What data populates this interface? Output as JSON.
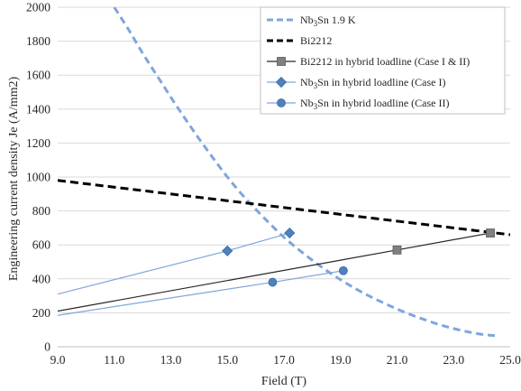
{
  "chart_data": {
    "type": "line",
    "xlabel": "Field (T)",
    "ylabel": "Engineering current density Je (A/mm2)",
    "xlim": [
      9,
      25
    ],
    "ylim": [
      0,
      2000
    ],
    "x_ticks": [
      "9.0",
      "11.0",
      "13.0",
      "15.0",
      "17.0",
      "19.0",
      "21.0",
      "23.0",
      "25.0"
    ],
    "y_ticks": [
      "0",
      "200",
      "400",
      "600",
      "800",
      "1000",
      "1200",
      "1400",
      "1600",
      "1800",
      "2000"
    ],
    "grid": "horizontal",
    "legend_position": "top-right",
    "series": [
      {
        "name": "Nb3Sn 1.9 K",
        "name_base": "Nb",
        "name_sub": "3",
        "name_rest": "Sn 1.9 K",
        "style": "dashed",
        "color": "#7ea6dc",
        "marker": "none",
        "x": [
          11.0,
          11.5,
          12.0,
          12.5,
          13.0,
          13.5,
          14.0,
          14.5,
          15.0,
          15.5,
          16.0,
          16.5,
          17.0,
          17.5,
          18.0,
          18.5,
          19.0,
          19.5,
          20.0,
          20.5,
          21.0,
          21.5,
          22.0,
          22.5,
          23.0,
          23.5,
          24.0,
          24.5
        ],
        "y": [
          2000,
          1870,
          1730,
          1600,
          1470,
          1345,
          1225,
          1110,
          1000,
          900,
          810,
          725,
          645,
          575,
          510,
          450,
          395,
          345,
          300,
          260,
          222,
          188,
          158,
          130,
          107,
          88,
          73,
          65
        ]
      },
      {
        "name": "Bi2212",
        "style": "dashed",
        "color": "#000000",
        "marker": "none",
        "x": [
          9,
          25
        ],
        "y": [
          980,
          660
        ]
      },
      {
        "name": "Bi2212 in hybrid loadline (Case I & II)",
        "style": "solid",
        "color": "#262626",
        "marker": "square",
        "marker_color": "#808080",
        "x": [
          9,
          21,
          24.3
        ],
        "y": [
          210,
          570,
          670
        ]
      },
      {
        "name": "Nb3Sn in hybrid loadline (Case I)",
        "name_base": "Nb",
        "name_sub": "3",
        "name_rest": "Sn in hybrid loadline (Case I)",
        "style": "solid",
        "color": "#7ea6dc",
        "marker": "diamond",
        "marker_color": "#4f81bd",
        "x": [
          9,
          15,
          17.2
        ],
        "y": [
          310,
          565,
          670
        ]
      },
      {
        "name": "Nb3Sn in hybrid loadline (Case II)",
        "name_base": "Nb",
        "name_sub": "3",
        "name_rest": "Sn in hybrid loadline (Case II)",
        "style": "solid",
        "color": "#7ea6dc",
        "marker": "circle",
        "marker_color": "#4f81bd",
        "x": [
          9,
          16.6,
          19.1
        ],
        "y": [
          185,
          380,
          448
        ]
      }
    ]
  }
}
